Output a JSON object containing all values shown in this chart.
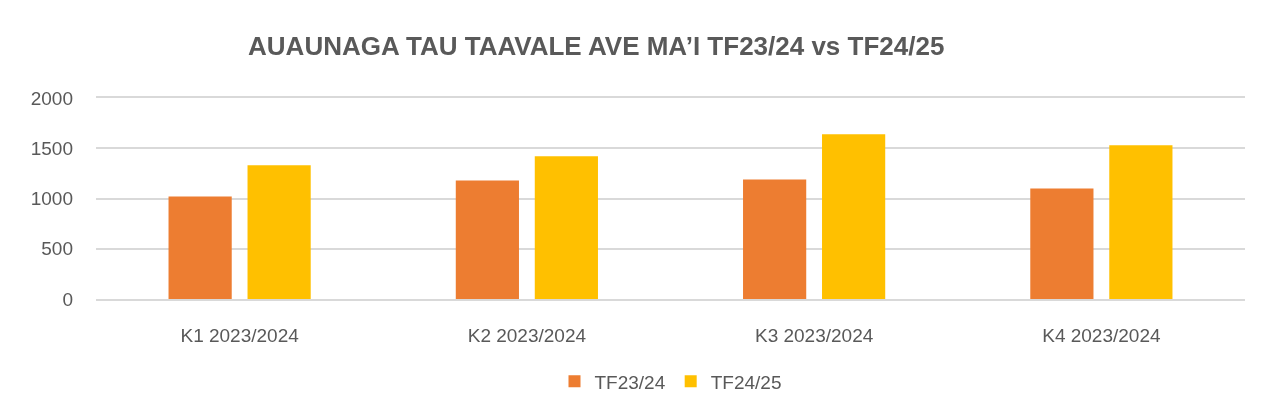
{
  "chart_data": {
    "type": "bar",
    "title": "AUAUNAGA TAU TAAVALE AVE MA’I TF23/24 vs TF24/25",
    "categories": [
      "K1 2023/2024",
      "K2 2023/2024",
      "K3 2023/2024",
      "K4 2023/2024"
    ],
    "series": [
      {
        "name": "TF23/24",
        "color": "#ed7d31",
        "values": [
          1020,
          1180,
          1190,
          1100
        ]
      },
      {
        "name": "TF24/25",
        "color": "#ffc000",
        "values": [
          1330,
          1420,
          1640,
          1530
        ]
      }
    ],
    "ylim": [
      0,
      2000
    ],
    "yticks": [
      0,
      500,
      1000,
      1500,
      2000
    ],
    "grid": "y",
    "legend": "bottom"
  }
}
